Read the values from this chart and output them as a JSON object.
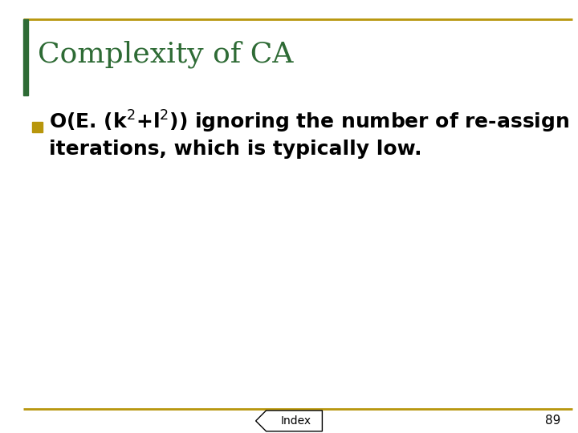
{
  "title": "Complexity of CA",
  "title_color": "#2e6b35",
  "title_fontsize": 26,
  "background_color": "#ffffff",
  "border_color": "#b8960c",
  "border_left_color": "#2e6b35",
  "bullet_color": "#b8960c",
  "bullet_text_line1": "O(E. (k$^2$+l$^2$)) ignoring the number of re-assign",
  "bullet_text_line2": "iterations, which is typically low.",
  "bullet_fontsize": 18,
  "index_label": "Index",
  "page_number": "89",
  "footer_color": "#b8960c",
  "title_font_family": "serif"
}
